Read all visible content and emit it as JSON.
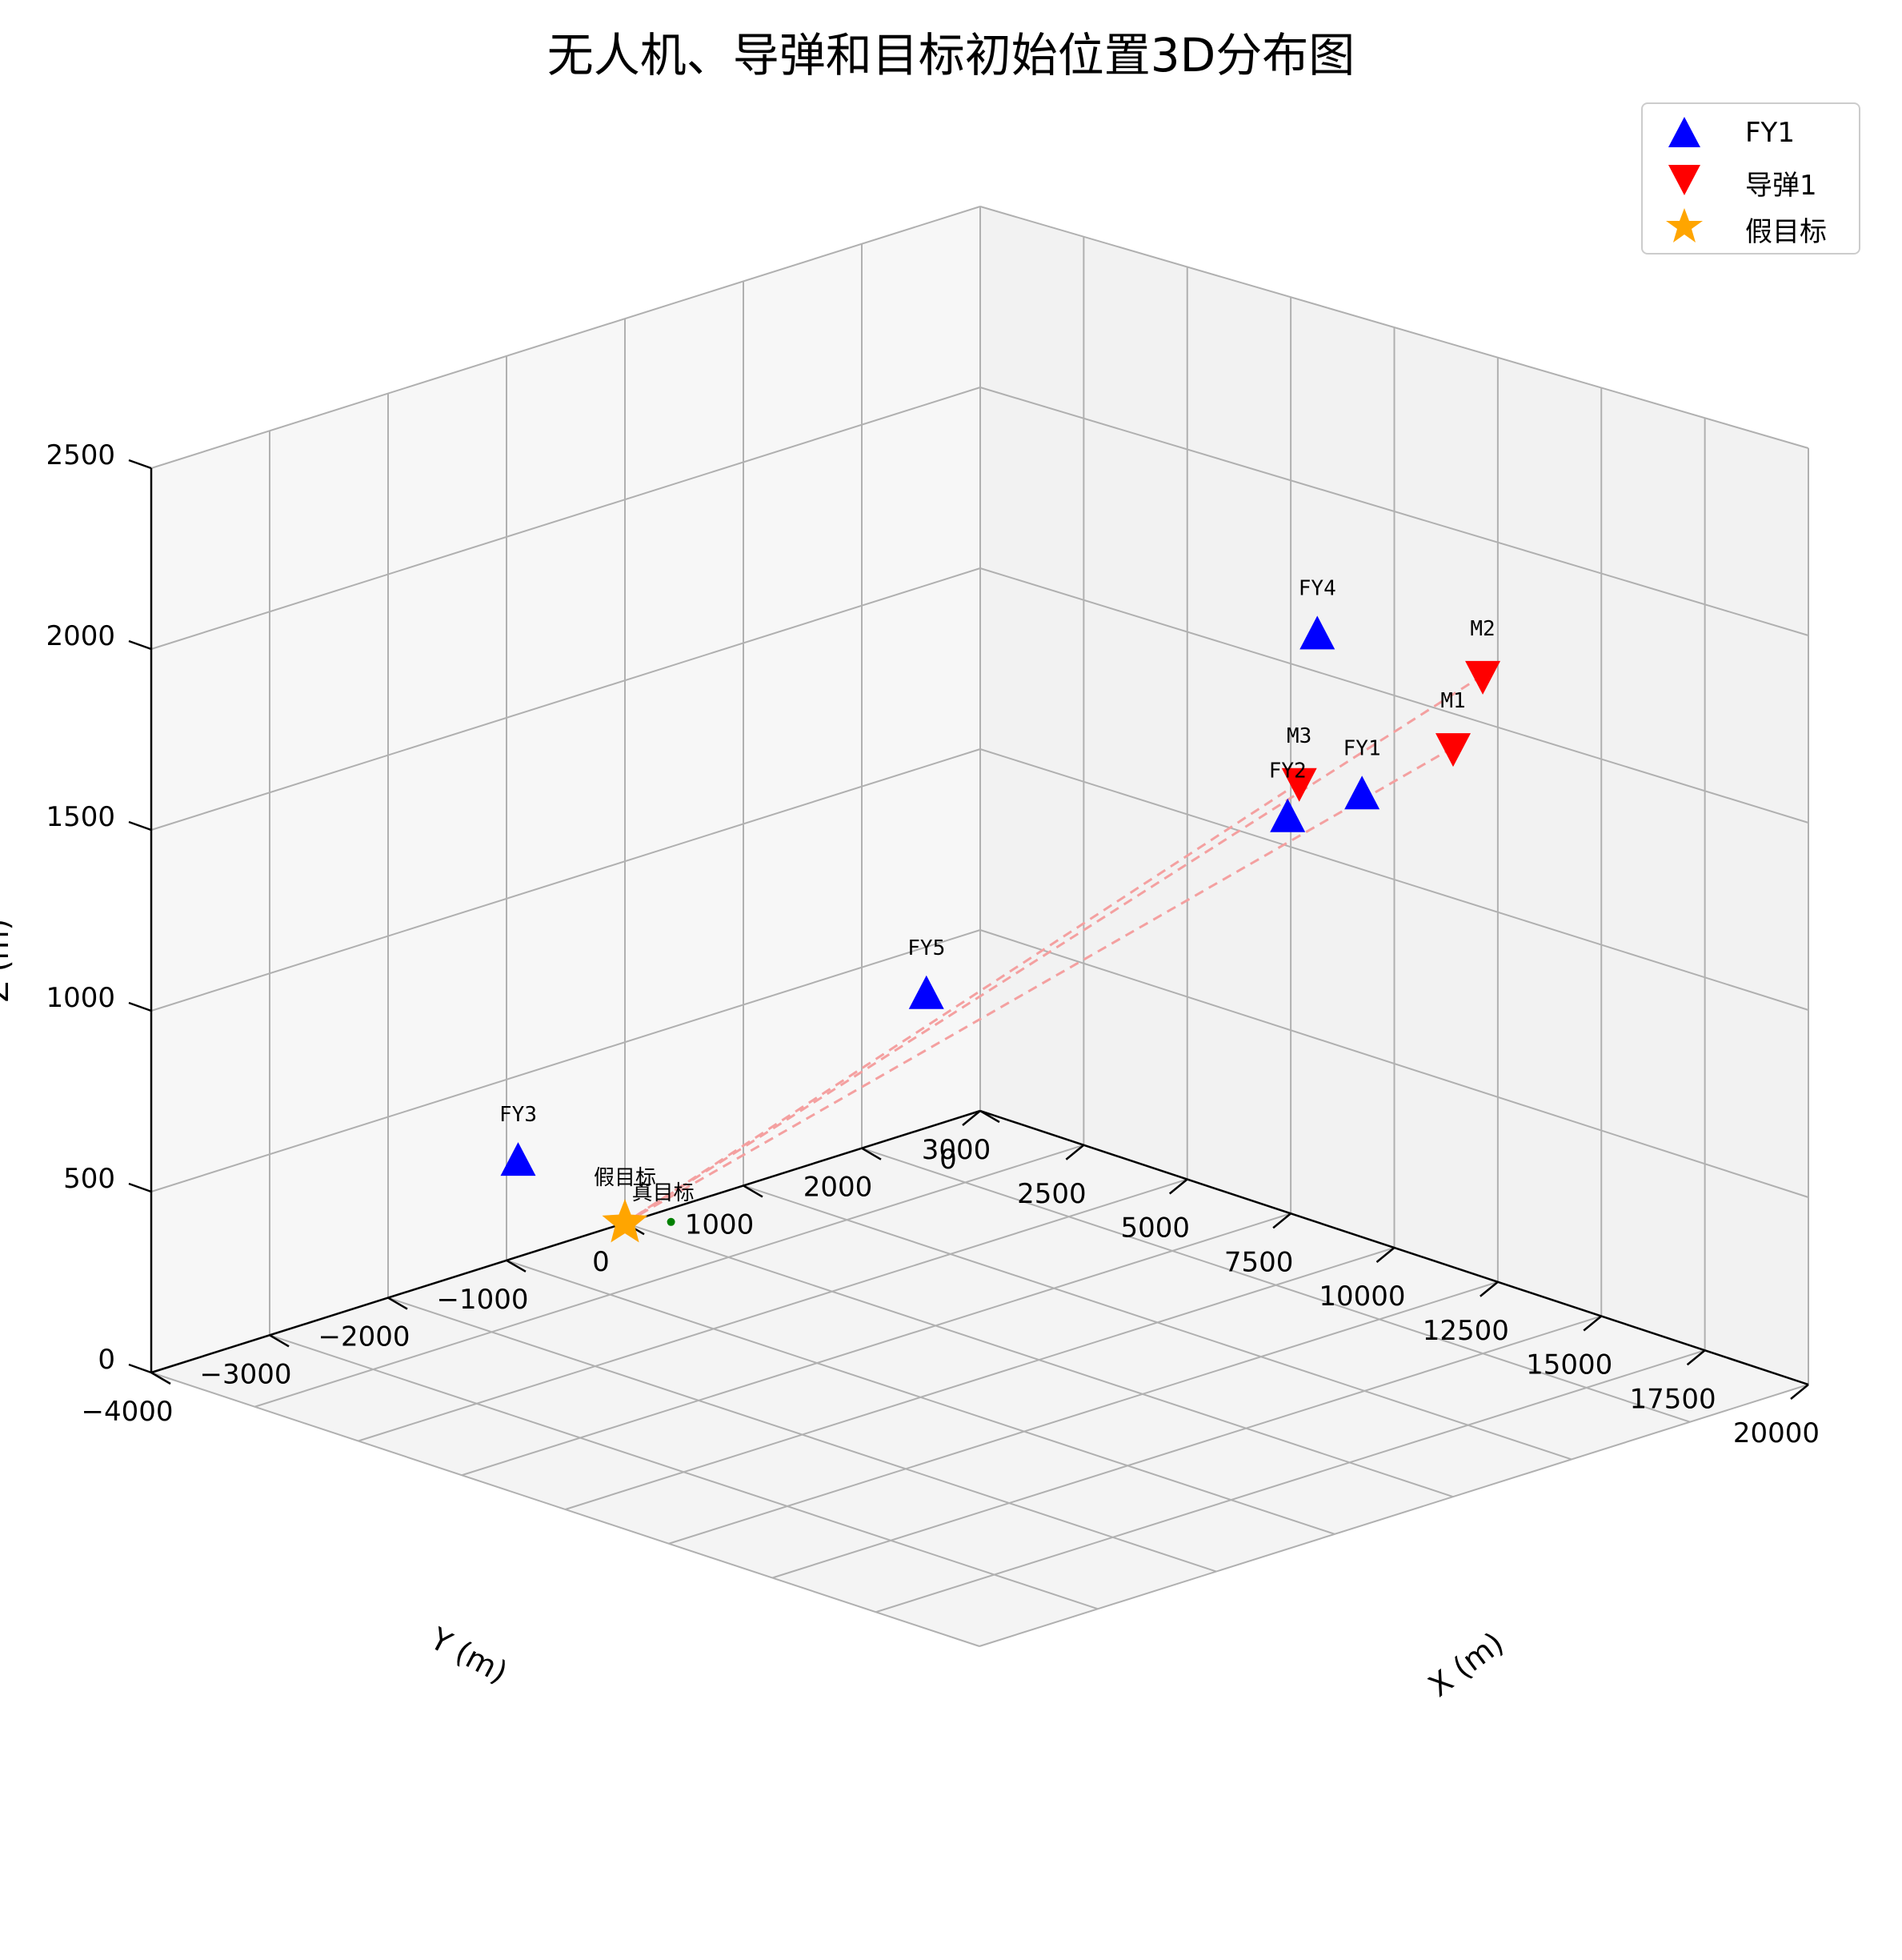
{
  "chart_data": {
    "type": "scatter3d",
    "title": "无人机、导弹和目标初始位置3D分布图",
    "xlabel": "X (m)",
    "ylabel": "Y (m)",
    "zlabel": "Z (m)",
    "xlim": [
      0,
      20000
    ],
    "ylim": [
      -4000,
      3000
    ],
    "zlim": [
      0,
      2500
    ],
    "x_ticks": [
      "0",
      "2500",
      "5000",
      "7500",
      "10000",
      "12500",
      "15000",
      "17500",
      "20000"
    ],
    "y_ticks": [
      "−4000",
      "−3000",
      "−2000",
      "−1000",
      "0",
      "1000",
      "2000",
      "3000"
    ],
    "z_ticks": [
      "0",
      "500",
      "1000",
      "1500",
      "2000",
      "2500"
    ],
    "grid": true,
    "legend_position": "top-right",
    "legend": [
      {
        "label": "FY1",
        "symbol": "triangle-up",
        "color": "#0000ff"
      },
      {
        "label": "导弹1",
        "symbol": "triangle-down",
        "color": "#ff0000"
      },
      {
        "label": "假目标",
        "symbol": "star",
        "color": "#ffa500"
      }
    ],
    "drones": [
      {
        "name": "FY1",
        "x": 17800,
        "y": 0,
        "z": 1800
      },
      {
        "name": "FY2",
        "x": 12000,
        "y": 1400,
        "z": 1400
      },
      {
        "name": "FY3",
        "x": 6000,
        "y": -3000,
        "z": 700
      },
      {
        "name": "FY4",
        "x": 11000,
        "y": 2000,
        "z": 1800
      },
      {
        "name": "FY5",
        "x": 13000,
        "y": -2000,
        "z": 1300
      }
    ],
    "missiles": [
      {
        "name": "M1",
        "x": 20000,
        "y": 0,
        "z": 2000
      },
      {
        "name": "M2",
        "x": 19000,
        "y": 600,
        "z": 2100
      },
      {
        "name": "M3",
        "x": 18000,
        "y": -600,
        "z": 1900
      }
    ],
    "fake_target": {
      "name": "假目标",
      "x": 0,
      "y": 0,
      "z": 0
    },
    "true_target": {
      "name": "真目标",
      "x": 0,
      "y": 200,
      "z": 0
    },
    "colors": {
      "drone": "#0000ff",
      "missile": "#ff0000",
      "fake_target": "#ffa500",
      "true_target": "#008000",
      "trajectory": "#f4a0a0"
    }
  }
}
